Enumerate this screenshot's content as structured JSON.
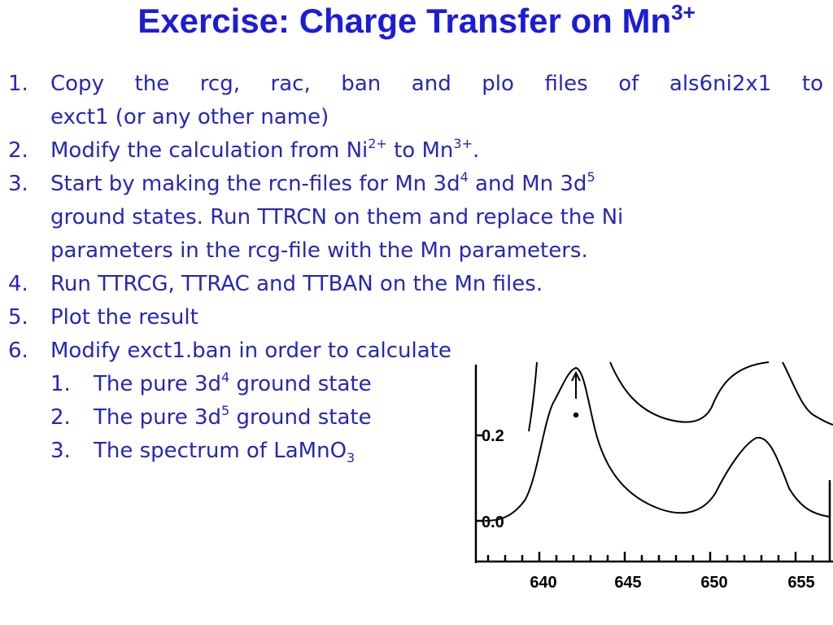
{
  "slide": {
    "title": [
      {
        "t": "Exercise: Charge Transfer on Mn"
      },
      {
        "sup": "3+"
      }
    ],
    "items": [
      {
        "number": "1.",
        "lines": [
          [
            {
              "t": "Copy the rcg, rac, ban and plo files of als6ni2x1 to"
            }
          ],
          [
            {
              "t": "exct1 (or any other name)"
            }
          ]
        ]
      },
      {
        "number": "2.",
        "lines": [
          [
            {
              "t": "Modify the calculation from Ni"
            },
            {
              "sup": "2+"
            },
            {
              "t": " to Mn"
            },
            {
              "sup": "3+"
            },
            {
              "t": "."
            }
          ]
        ]
      },
      {
        "number": "3.",
        "lines": [
          [
            {
              "t": "Start by making the rcn-files for Mn 3d"
            },
            {
              "sup": "4"
            },
            {
              "t": " and Mn 3d"
            },
            {
              "sup": "5"
            }
          ],
          [
            {
              "t": "ground states. Run TTRCN on them and replace the Ni"
            }
          ],
          [
            {
              "t": "parameters in the rcg-file with the Mn parameters."
            }
          ]
        ]
      },
      {
        "number": "4.",
        "lines": [
          [
            {
              "t": "Run TTRCG, TTRAC and TTBAN on the Mn files."
            }
          ]
        ]
      },
      {
        "number": "5.",
        "lines": [
          [
            {
              "t": "Plot the result"
            }
          ]
        ]
      },
      {
        "number": "6.",
        "lines": [
          [
            {
              "t": "Modify exct1.ban in order to calculate"
            }
          ]
        ],
        "subitems": [
          {
            "number": "1.",
            "lines": [
              [
                {
                  "t": "The pure 3d"
                },
                {
                  "sup": "4"
                },
                {
                  "t": " ground state"
                }
              ]
            ]
          },
          {
            "number": "2.",
            "lines": [
              [
                {
                  "t": "The pure 3d"
                },
                {
                  "sup": "5"
                },
                {
                  "t": " ground state"
                }
              ]
            ]
          },
          {
            "number": "3.",
            "lines": [
              [
                {
                  "t": "The spectrum of LaMnO"
                },
                {
                  "sub": "3"
                }
              ]
            ]
          }
        ]
      }
    ],
    "figure": {
      "y_labels": [
        "0.2",
        "0.0"
      ],
      "x_labels": [
        "640",
        "645",
        "650",
        "655"
      ]
    }
  }
}
